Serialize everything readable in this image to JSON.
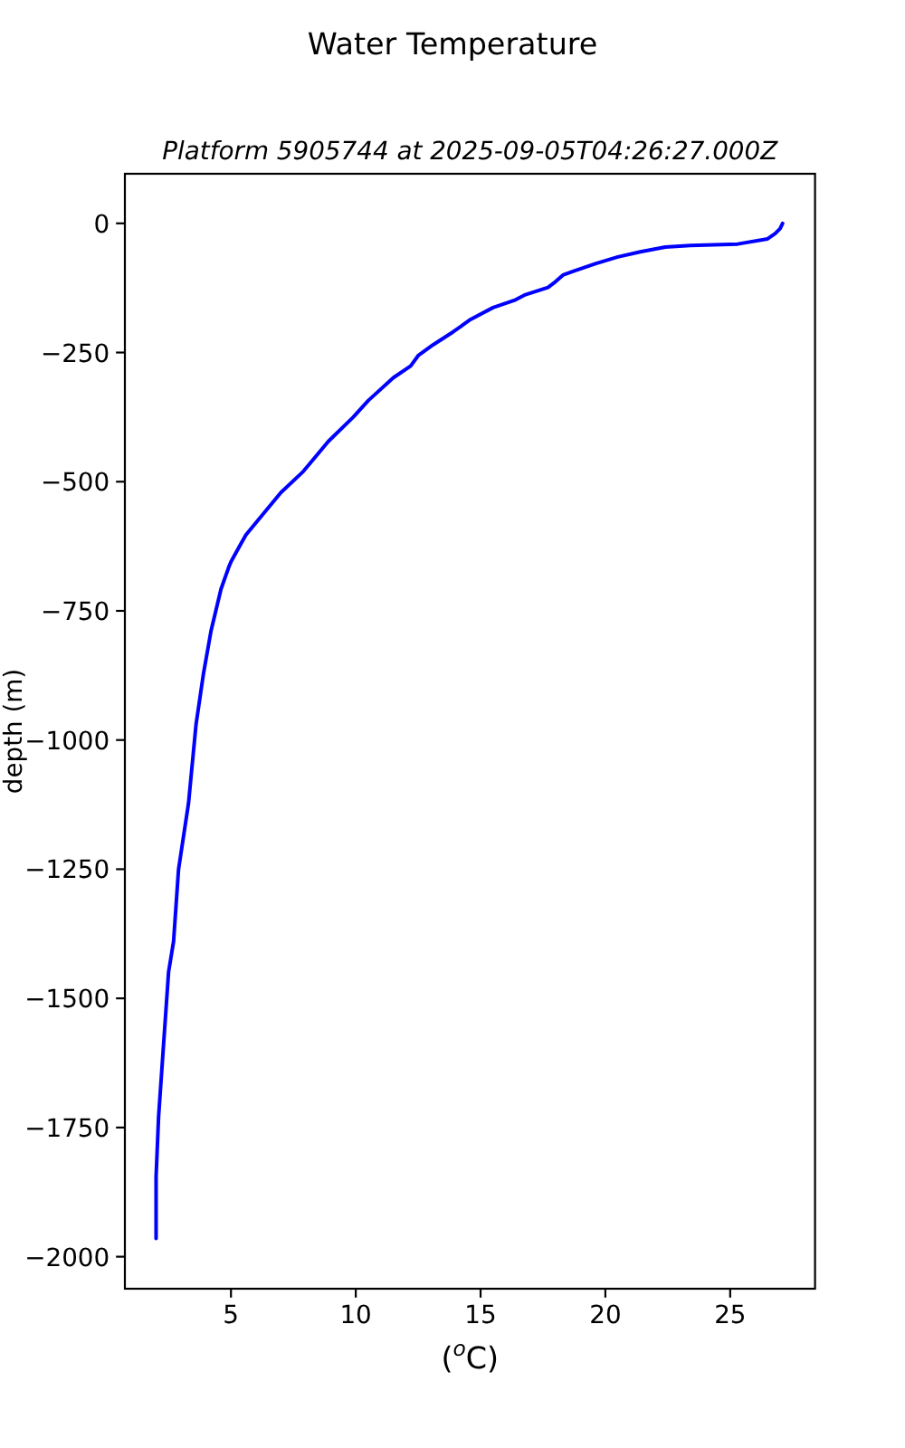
{
  "chart_data": {
    "type": "line",
    "title": "Water Temperature",
    "subtitle": "Platform 5905744 at 2025-09-05T04:26:27.000Z",
    "xlabel": "($^{o}$C)",
    "ylabel": "depth (m)",
    "x": [
      27.1,
      27.0,
      26.8,
      26.5,
      25.3,
      23.4,
      22.4,
      21.4,
      20.5,
      19.6,
      18.7,
      18.3,
      18.0,
      17.7,
      16.8,
      16.4,
      15.5,
      14.6,
      13.9,
      13.1,
      12.5,
      12.2,
      11.5,
      10.5,
      9.9,
      8.9,
      7.9,
      7.0,
      6.4,
      5.6,
      5.4,
      5.0,
      4.9,
      4.6,
      4.2,
      3.9,
      3.6,
      3.3,
      2.9,
      2.8,
      2.7,
      2.5,
      2.3,
      2.1,
      2.0,
      2.0
    ],
    "series": [
      {
        "color": "#0000ff",
        "values": [
          0,
          -10,
          -20,
          -30,
          -40,
          -43,
          -46,
          -55,
          -65,
          -78,
          -93,
          -100,
          -113,
          -124,
          -138,
          -148,
          -163,
          -186,
          -210,
          -235,
          -256,
          -276,
          -299,
          -343,
          -375,
          -422,
          -480,
          -521,
          -556,
          -603,
          -620,
          -655,
          -667,
          -708,
          -789,
          -871,
          -970,
          -1122,
          -1250,
          -1320,
          -1390,
          -1449,
          -1589,
          -1729,
          -1845,
          -1965
        ]
      }
    ],
    "xlim": [
      0.75,
      28.4
    ],
    "xticks": [
      5,
      10,
      15,
      20,
      25
    ],
    "ylim": [
      -2062,
      96
    ],
    "yticks": [
      {
        "value": -2000,
        "label": "−2000"
      },
      {
        "value": -1750,
        "label": "−1750"
      },
      {
        "value": -1500,
        "label": "−1500"
      },
      {
        "value": -1250,
        "label": "−1250"
      },
      {
        "value": -1000,
        "label": "−1000"
      },
      {
        "value": -750,
        "label": "−750"
      },
      {
        "value": -500,
        "label": "−500"
      },
      {
        "value": -250,
        "label": "−250"
      },
      0
    ]
  }
}
